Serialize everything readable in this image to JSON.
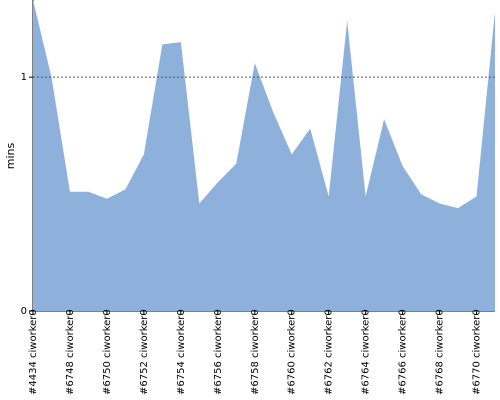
{
  "chart_data": {
    "type": "area",
    "ylabel": "mins",
    "ylim": [
      0,
      1.33
    ],
    "yticks": [
      {
        "value": 0,
        "label": "0"
      },
      {
        "value": 1,
        "label": "1"
      }
    ],
    "reference_line": 1,
    "fill_color": "#8eb1dc",
    "categories": [
      "#4434 ciworker0",
      "",
      "#6748 ciworker0",
      "",
      "#6750 ciworker0",
      "",
      "#6752 ciworker0",
      "",
      "#6754 ciworker0",
      "",
      "#6756 ciworker0",
      "",
      "#6758 ciworker0",
      "",
      "#6760 ciworker0",
      "",
      "#6762 ciworker0",
      "",
      "#6764 ciworker0",
      "",
      "#6766 ciworker0",
      "",
      "#6768 ciworker0",
      "",
      "#6770 ciworker0",
      ""
    ],
    "values": [
      1.33,
      1.0,
      0.51,
      0.51,
      0.48,
      0.52,
      0.67,
      1.14,
      1.15,
      0.46,
      0.55,
      0.63,
      1.06,
      0.85,
      0.67,
      0.78,
      0.49,
      1.24,
      0.49,
      0.82,
      0.62,
      0.5,
      0.46,
      0.44,
      0.49,
      1.28
    ]
  }
}
